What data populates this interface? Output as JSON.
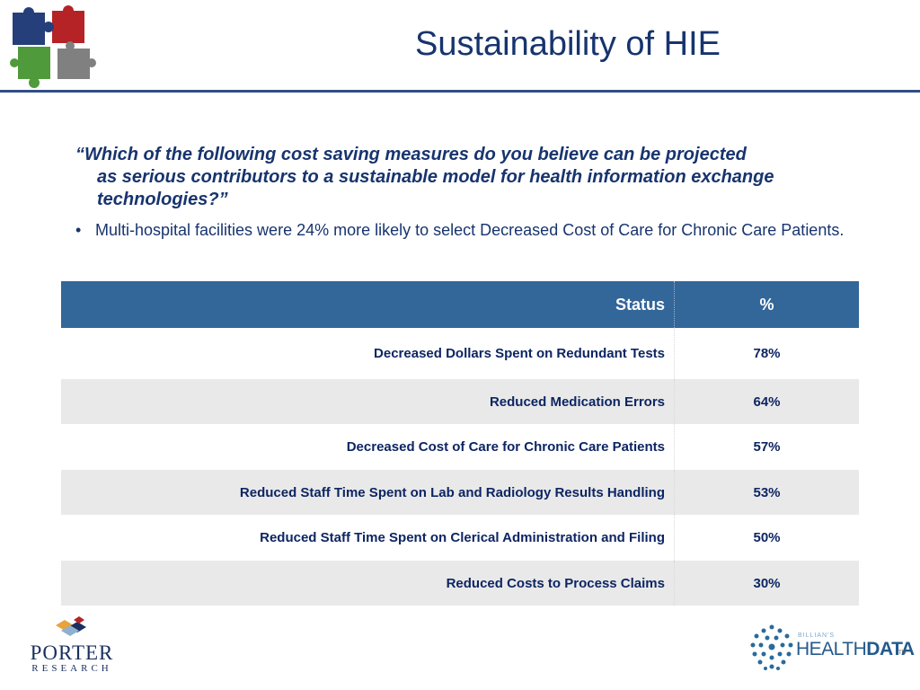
{
  "header": {
    "title": "Sustainability of HIE",
    "logo_icon": "puzzle-pieces-icon"
  },
  "question": {
    "line1": "“Which of the following cost saving measures do you believe can be projected",
    "rest": "as serious contributors to a sustainable model for health information exchange technologies?”"
  },
  "bullet": {
    "symbol": "•",
    "text": "Multi-hospital facilities were 24% more likely to select Decreased Cost of Care for Chronic Care Patients."
  },
  "table": {
    "header": {
      "status": "Status",
      "percent": "%"
    },
    "rows": [
      {
        "status": "Decreased Dollars Spent on Redundant Tests",
        "percent": "78%"
      },
      {
        "status": "Reduced Medication Errors",
        "percent": "64%"
      },
      {
        "status": "Decreased Cost of Care for Chronic Care Patients",
        "percent": "57%"
      },
      {
        "status": "Reduced Staff Time Spent on Lab and Radiology Results Handling",
        "percent": "53%"
      },
      {
        "status": "Reduced Staff Time Spent on Clerical Administration and Filing",
        "percent": "50%"
      },
      {
        "status": "Reduced Costs to Process Claims",
        "percent": "30%"
      }
    ]
  },
  "footer": {
    "porter": {
      "name": "PORTER",
      "sub": "RESEARCH"
    },
    "healthdata": {
      "small": "BILLIAN'S",
      "health": "HEALTH",
      "data": "DATA",
      "tm": "TM"
    }
  },
  "colors": {
    "title": "#17346e",
    "header_bg": "#336699",
    "row_alt": "#e9e9e9",
    "rule": "#2f4f86"
  }
}
